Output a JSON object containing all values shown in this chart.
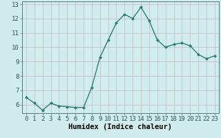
{
  "x": [
    0,
    1,
    2,
    3,
    4,
    5,
    6,
    7,
    8,
    9,
    10,
    11,
    12,
    13,
    14,
    15,
    16,
    17,
    18,
    19,
    20,
    21,
    22,
    23
  ],
  "y": [
    6.5,
    6.1,
    5.6,
    6.1,
    5.9,
    5.85,
    5.8,
    5.8,
    7.2,
    9.3,
    10.5,
    11.7,
    12.3,
    12.0,
    12.8,
    11.85,
    10.5,
    10.0,
    10.2,
    10.3,
    10.1,
    9.5,
    9.2,
    9.4
  ],
  "xlabel": "Humidex (Indice chaleur)",
  "ylim": [
    5.4,
    13.2
  ],
  "xlim": [
    -0.5,
    23.5
  ],
  "yticks": [
    6,
    7,
    8,
    9,
    10,
    11,
    12,
    13
  ],
  "xticks": [
    0,
    1,
    2,
    3,
    4,
    5,
    6,
    7,
    8,
    9,
    10,
    11,
    12,
    13,
    14,
    15,
    16,
    17,
    18,
    19,
    20,
    21,
    22,
    23
  ],
  "xtick_labels": [
    "0",
    "1",
    "2",
    "3",
    "4",
    "5",
    "6",
    "7",
    "8",
    "9",
    "10",
    "11",
    "12",
    "13",
    "14",
    "15",
    "16",
    "17",
    "18",
    "19",
    "20",
    "21",
    "22",
    "23"
  ],
  "line_color": "#2e7d6e",
  "marker": "D",
  "marker_size": 2.0,
  "bg_color": "#d0ecec",
  "grid_color_v": "#c8b8b8",
  "grid_color_h": "#c8b8b8",
  "xlabel_fontsize": 7.5,
  "tick_fontsize": 6.5,
  "line_width": 1.0
}
